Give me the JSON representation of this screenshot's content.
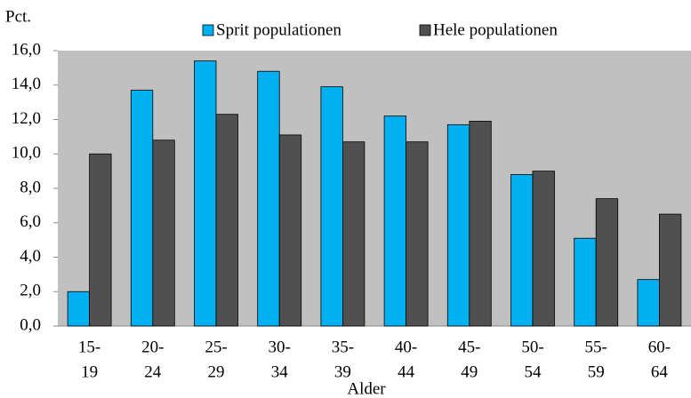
{
  "chart_data": {
    "type": "bar",
    "y_label": "Pct.",
    "x_label": "Alder",
    "categories": [
      [
        "15-",
        "19"
      ],
      [
        "20-",
        "24"
      ],
      [
        "25-",
        "29"
      ],
      [
        "30-",
        "34"
      ],
      [
        "35-",
        "39"
      ],
      [
        "40-",
        "44"
      ],
      [
        "45-",
        "49"
      ],
      [
        "50-",
        "54"
      ],
      [
        "55-",
        "59"
      ],
      [
        "60-",
        "64"
      ]
    ],
    "series": [
      {
        "name": "Sprit populationen",
        "color": "#00b0f0",
        "values": [
          2.0,
          13.7,
          15.4,
          14.8,
          13.9,
          12.2,
          11.7,
          8.8,
          5.1,
          2.7
        ]
      },
      {
        "name": "Hele populationen",
        "color": "#505050",
        "values": [
          10.0,
          10.8,
          12.3,
          11.1,
          10.7,
          10.7,
          11.9,
          9.0,
          7.4,
          6.5
        ]
      }
    ],
    "ylim": [
      0,
      16
    ],
    "yticks": [
      {
        "value": 0,
        "label": "0,0"
      },
      {
        "value": 2,
        "label": "2,0"
      },
      {
        "value": 4,
        "label": "4,0"
      },
      {
        "value": 6,
        "label": "6,0"
      },
      {
        "value": 8,
        "label": "8,0"
      },
      {
        "value": 10,
        "label": "10,0"
      },
      {
        "value": 12,
        "label": "12,0"
      },
      {
        "value": 14,
        "label": "14,0"
      },
      {
        "value": 16,
        "label": "16,0"
      }
    ],
    "legend": "top"
  }
}
